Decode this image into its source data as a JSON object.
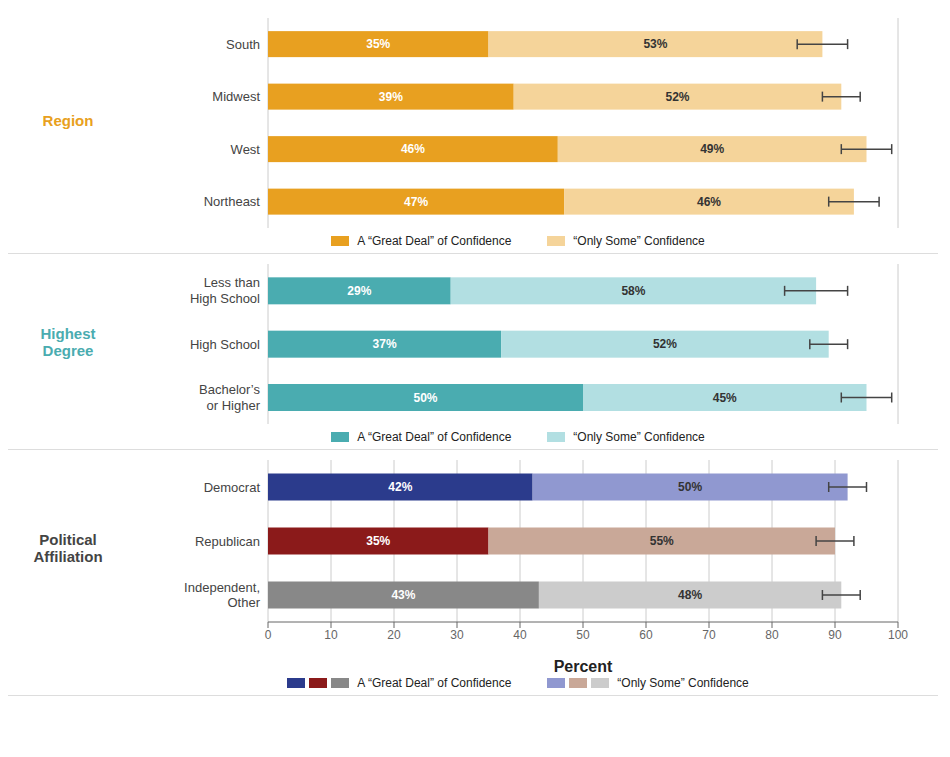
{
  "chart_data": [
    {
      "type": "bar",
      "orientation": "horizontal",
      "stacked": true,
      "title": "Region",
      "categories": [
        "South",
        "Midwest",
        "West",
        "Northeast"
      ],
      "series": [
        {
          "name": "A “Great Deal” of Confidence",
          "color": "#E8A020",
          "values": [
            35,
            39,
            46,
            47
          ],
          "value_labels": [
            "35%",
            "39%",
            "46%",
            "47%"
          ]
        },
        {
          "name": "“Only Some” Confidence",
          "color": "#F5D49A",
          "values": [
            53,
            52,
            49,
            46
          ],
          "value_labels": [
            "53%",
            "52%",
            "49%",
            "46%"
          ],
          "errors": [
            4,
            3,
            4,
            4
          ]
        }
      ],
      "xlim": [
        0,
        100
      ],
      "xticks": [
        0,
        10,
        20,
        30,
        40,
        50,
        60,
        70,
        80,
        90,
        100
      ],
      "grid": true,
      "data_labels": true,
      "tick_labels": "y"
    },
    {
      "type": "bar",
      "orientation": "horizontal",
      "stacked": true,
      "title": "Highest\nDegree",
      "categories": [
        "Less than\nHigh School",
        "High School",
        "Bachelor’s\nor Higher"
      ],
      "series": [
        {
          "name": "A “Great Deal” of Confidence",
          "color": "#4AACB0",
          "values": [
            29,
            37,
            50
          ],
          "value_labels": [
            "29%",
            "37%",
            "50%"
          ]
        },
        {
          "name": "“Only Some” Confidence",
          "color": "#B2DFE2",
          "values": [
            58,
            52,
            45
          ],
          "value_labels": [
            "58%",
            "52%",
            "45%"
          ],
          "errors": [
            5,
            3,
            4
          ]
        }
      ],
      "xlim": [
        0,
        100
      ],
      "xticks": [
        0,
        10,
        20,
        30,
        40,
        50,
        60,
        70,
        80,
        90,
        100
      ],
      "grid": true,
      "data_labels": true,
      "tick_labels": "y"
    },
    {
      "type": "bar",
      "orientation": "horizontal",
      "stacked": true,
      "title": "Political\nAffiliation",
      "categories": [
        "Democrat",
        "Republican",
        "Independent,\nOther"
      ],
      "series": [
        {
          "name": "A “Great Deal” of Confidence",
          "colors": [
            "#2B3B8C",
            "#8B1A1A",
            "#888888"
          ],
          "values": [
            42,
            35,
            43
          ],
          "value_labels": [
            "42%",
            "35%",
            "43%"
          ]
        },
        {
          "name": "“Only Some” Confidence",
          "colors": [
            "#9098D0",
            "#C9A898",
            "#CCCCCC"
          ],
          "values": [
            50,
            55,
            48
          ],
          "value_labels": [
            "50%",
            "55%",
            "48%"
          ],
          "errors": [
            3,
            3,
            3
          ]
        }
      ],
      "xlabel": "Percent",
      "xlim": [
        0,
        100
      ],
      "xticks": [
        0,
        10,
        20,
        30,
        40,
        50,
        60,
        70,
        80,
        90,
        100
      ],
      "grid": true,
      "data_labels": true
    }
  ]
}
